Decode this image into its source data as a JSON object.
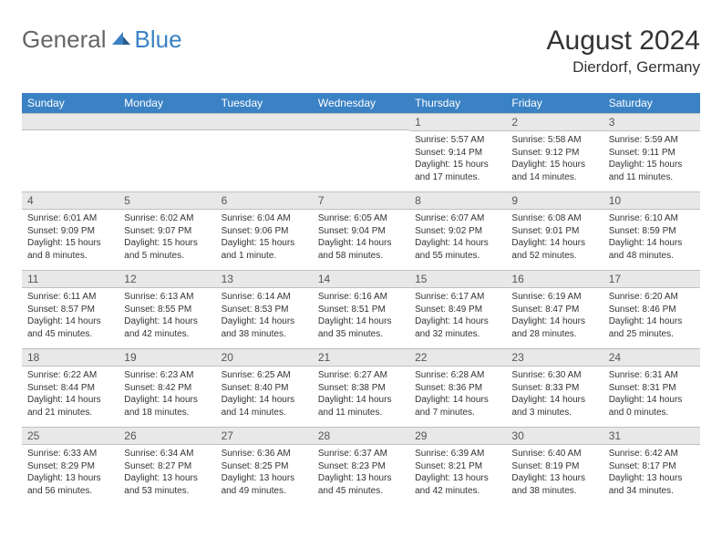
{
  "logo": {
    "general": "General",
    "blue": "Blue"
  },
  "title": "August 2024",
  "location": "Dierdorf, Germany",
  "colors": {
    "header_bg": "#3b82c4",
    "header_fg": "#ffffff",
    "daynum_bg": "#e8e8e8",
    "daynum_border": "#c0c0c0",
    "text": "#333333",
    "logo_gray": "#666666",
    "logo_blue": "#3b82c4"
  },
  "weekdays": [
    "Sunday",
    "Monday",
    "Tuesday",
    "Wednesday",
    "Thursday",
    "Friday",
    "Saturday"
  ],
  "first_day_index": 4,
  "days": [
    {
      "n": 1,
      "sunrise": "5:57 AM",
      "sunset": "9:14 PM",
      "daylight": "15 hours and 17 minutes."
    },
    {
      "n": 2,
      "sunrise": "5:58 AM",
      "sunset": "9:12 PM",
      "daylight": "15 hours and 14 minutes."
    },
    {
      "n": 3,
      "sunrise": "5:59 AM",
      "sunset": "9:11 PM",
      "daylight": "15 hours and 11 minutes."
    },
    {
      "n": 4,
      "sunrise": "6:01 AM",
      "sunset": "9:09 PM",
      "daylight": "15 hours and 8 minutes."
    },
    {
      "n": 5,
      "sunrise": "6:02 AM",
      "sunset": "9:07 PM",
      "daylight": "15 hours and 5 minutes."
    },
    {
      "n": 6,
      "sunrise": "6:04 AM",
      "sunset": "9:06 PM",
      "daylight": "15 hours and 1 minute."
    },
    {
      "n": 7,
      "sunrise": "6:05 AM",
      "sunset": "9:04 PM",
      "daylight": "14 hours and 58 minutes."
    },
    {
      "n": 8,
      "sunrise": "6:07 AM",
      "sunset": "9:02 PM",
      "daylight": "14 hours and 55 minutes."
    },
    {
      "n": 9,
      "sunrise": "6:08 AM",
      "sunset": "9:01 PM",
      "daylight": "14 hours and 52 minutes."
    },
    {
      "n": 10,
      "sunrise": "6:10 AM",
      "sunset": "8:59 PM",
      "daylight": "14 hours and 48 minutes."
    },
    {
      "n": 11,
      "sunrise": "6:11 AM",
      "sunset": "8:57 PM",
      "daylight": "14 hours and 45 minutes."
    },
    {
      "n": 12,
      "sunrise": "6:13 AM",
      "sunset": "8:55 PM",
      "daylight": "14 hours and 42 minutes."
    },
    {
      "n": 13,
      "sunrise": "6:14 AM",
      "sunset": "8:53 PM",
      "daylight": "14 hours and 38 minutes."
    },
    {
      "n": 14,
      "sunrise": "6:16 AM",
      "sunset": "8:51 PM",
      "daylight": "14 hours and 35 minutes."
    },
    {
      "n": 15,
      "sunrise": "6:17 AM",
      "sunset": "8:49 PM",
      "daylight": "14 hours and 32 minutes."
    },
    {
      "n": 16,
      "sunrise": "6:19 AM",
      "sunset": "8:47 PM",
      "daylight": "14 hours and 28 minutes."
    },
    {
      "n": 17,
      "sunrise": "6:20 AM",
      "sunset": "8:46 PM",
      "daylight": "14 hours and 25 minutes."
    },
    {
      "n": 18,
      "sunrise": "6:22 AM",
      "sunset": "8:44 PM",
      "daylight": "14 hours and 21 minutes."
    },
    {
      "n": 19,
      "sunrise": "6:23 AM",
      "sunset": "8:42 PM",
      "daylight": "14 hours and 18 minutes."
    },
    {
      "n": 20,
      "sunrise": "6:25 AM",
      "sunset": "8:40 PM",
      "daylight": "14 hours and 14 minutes."
    },
    {
      "n": 21,
      "sunrise": "6:27 AM",
      "sunset": "8:38 PM",
      "daylight": "14 hours and 11 minutes."
    },
    {
      "n": 22,
      "sunrise": "6:28 AM",
      "sunset": "8:36 PM",
      "daylight": "14 hours and 7 minutes."
    },
    {
      "n": 23,
      "sunrise": "6:30 AM",
      "sunset": "8:33 PM",
      "daylight": "14 hours and 3 minutes."
    },
    {
      "n": 24,
      "sunrise": "6:31 AM",
      "sunset": "8:31 PM",
      "daylight": "14 hours and 0 minutes."
    },
    {
      "n": 25,
      "sunrise": "6:33 AM",
      "sunset": "8:29 PM",
      "daylight": "13 hours and 56 minutes."
    },
    {
      "n": 26,
      "sunrise": "6:34 AM",
      "sunset": "8:27 PM",
      "daylight": "13 hours and 53 minutes."
    },
    {
      "n": 27,
      "sunrise": "6:36 AM",
      "sunset": "8:25 PM",
      "daylight": "13 hours and 49 minutes."
    },
    {
      "n": 28,
      "sunrise": "6:37 AM",
      "sunset": "8:23 PM",
      "daylight": "13 hours and 45 minutes."
    },
    {
      "n": 29,
      "sunrise": "6:39 AM",
      "sunset": "8:21 PM",
      "daylight": "13 hours and 42 minutes."
    },
    {
      "n": 30,
      "sunrise": "6:40 AM",
      "sunset": "8:19 PM",
      "daylight": "13 hours and 38 minutes."
    },
    {
      "n": 31,
      "sunrise": "6:42 AM",
      "sunset": "8:17 PM",
      "daylight": "13 hours and 34 minutes."
    }
  ],
  "labels": {
    "sunrise": "Sunrise:",
    "sunset": "Sunset:",
    "daylight": "Daylight:"
  }
}
